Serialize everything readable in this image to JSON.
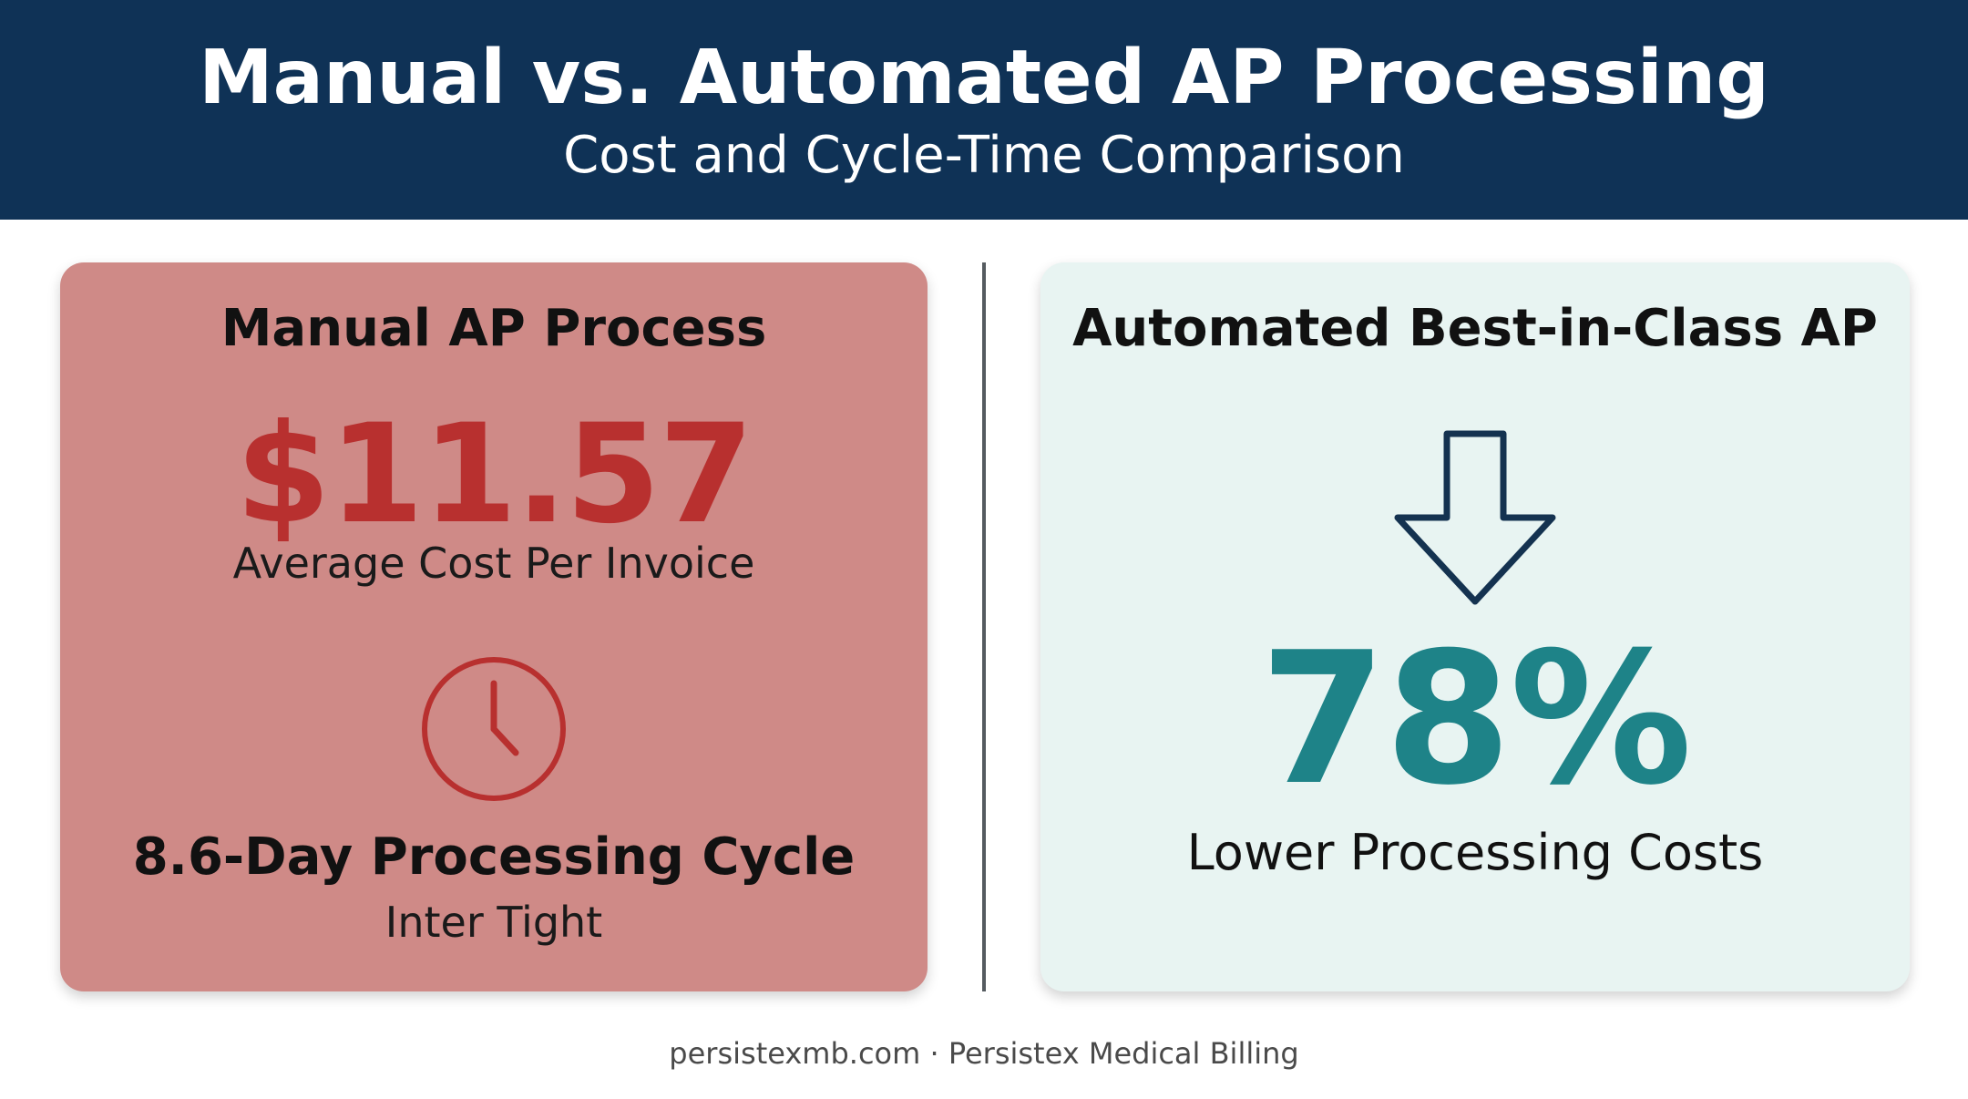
{
  "header": {
    "title": "Manual vs. Automated AP Processing",
    "subtitle": "Cost and Cycle-Time Comparison"
  },
  "manual_card": {
    "heading": "Manual AP Process",
    "cost_value": "$11.57",
    "cost_label": "Average Cost Per Invoice",
    "icon": "clock-icon",
    "cycle_heading": "8.6-Day Processing Cycle",
    "cycle_sub": "Inter Tight"
  },
  "auto_card": {
    "heading": "Automated Best-in-Class AP",
    "icon": "arrow-down-icon",
    "value": "78%",
    "value_label": "Lower Processing Costs"
  },
  "footer": {
    "text": "persistexmb.com · Persistex Medical Billing"
  },
  "colors": {
    "header_bg": "#0f3256",
    "manual_card_bg": "#cf8a87",
    "manual_accent": "#b8302f",
    "auto_card_bg": "#e8f4f2",
    "auto_accent": "#1e8388",
    "arrow_stroke": "#143250"
  }
}
